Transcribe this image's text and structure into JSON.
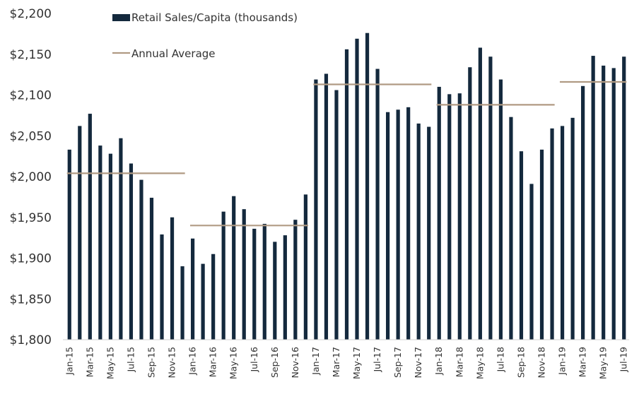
{
  "chart_data": {
    "type": "bar",
    "title": "",
    "xlabel": "",
    "ylabel": "",
    "ylim": [
      1800,
      2200
    ],
    "y_ticks": [
      "$1,800",
      "$1,850",
      "$1,900",
      "$1,950",
      "$2,000",
      "$2,050",
      "$2,100",
      "$2,150",
      "$2,200"
    ],
    "y_tick_values": [
      1800,
      1850,
      1900,
      1950,
      2000,
      2050,
      2100,
      2150,
      2200
    ],
    "bar_color": "#14293d",
    "line_color": "#b09a83",
    "legend": {
      "position": "top-center",
      "bar_label": "Retail Sales/Capita (thousands)",
      "line_label": "Annual Average"
    },
    "categories": [
      "Jan-15",
      "Feb-15",
      "Mar-15",
      "Apr-15",
      "May-15",
      "Jun-15",
      "Jul-15",
      "Aug-15",
      "Sep-15",
      "Oct-15",
      "Nov-15",
      "Dec-15",
      "Jan-16",
      "Feb-16",
      "Mar-16",
      "Apr-16",
      "May-16",
      "Jun-16",
      "Jul-16",
      "Aug-16",
      "Sep-16",
      "Oct-16",
      "Nov-16",
      "Dec-16",
      "Jan-17",
      "Feb-17",
      "Mar-17",
      "Apr-17",
      "May-17",
      "Jun-17",
      "Jul-17",
      "Aug-17",
      "Sep-17",
      "Oct-17",
      "Nov-17",
      "Dec-17",
      "Jan-18",
      "Feb-18",
      "Mar-18",
      "Apr-18",
      "May-18",
      "Jun-18",
      "Jul-18",
      "Aug-18",
      "Sep-18",
      "Oct-18",
      "Nov-18",
      "Dec-18",
      "Jan-19",
      "Feb-19",
      "Mar-19",
      "Apr-19",
      "May-19",
      "Jun-19",
      "Jul-19"
    ],
    "x_tick_labels": [
      "Jan-15",
      "Mar-15",
      "May-15",
      "Jul-15",
      "Sep-15",
      "Nov-15",
      "Jan-16",
      "Mar-16",
      "May-16",
      "Jul-16",
      "Sep-16",
      "Nov-16",
      "Jan-17",
      "Mar-17",
      "May-17",
      "Jul-17",
      "Sep-17",
      "Nov-17",
      "Jan-18",
      "Mar-18",
      "May-18",
      "Jul-18",
      "Sep-18",
      "Nov-18",
      "Jan-19",
      "Mar-19",
      "May-19",
      "Jul-19"
    ],
    "series": [
      {
        "name": "Retail Sales/Capita (thousands)",
        "type": "bar",
        "values": [
          2033,
          2062,
          2077,
          2038,
          2028,
          2047,
          2016,
          1996,
          1974,
          1929,
          1950,
          1890,
          1924,
          1893,
          1905,
          1957,
          1976,
          1960,
          1936,
          1942,
          1920,
          1928,
          1947,
          1978,
          2119,
          2126,
          2106,
          2156,
          2169,
          2176,
          2132,
          2079,
          2082,
          2085,
          2065,
          2061,
          2110,
          2101,
          2102,
          2134,
          2158,
          2147,
          2119,
          2073,
          2031,
          1991,
          2033,
          2059,
          2062,
          2072,
          2111,
          2148,
          2136,
          2133,
          2147
        ]
      },
      {
        "name": "Annual Average",
        "type": "step",
        "segments": [
          {
            "start": "Jan-15",
            "end": "Dec-15",
            "value": 2004
          },
          {
            "start": "Jan-16",
            "end": "Dec-16",
            "value": 1940
          },
          {
            "start": "Jan-17",
            "end": "Dec-17",
            "value": 2113
          },
          {
            "start": "Jan-18",
            "end": "Dec-18",
            "value": 2088
          },
          {
            "start": "Jan-19",
            "end": "Jul-19",
            "value": 2116
          }
        ]
      }
    ]
  }
}
